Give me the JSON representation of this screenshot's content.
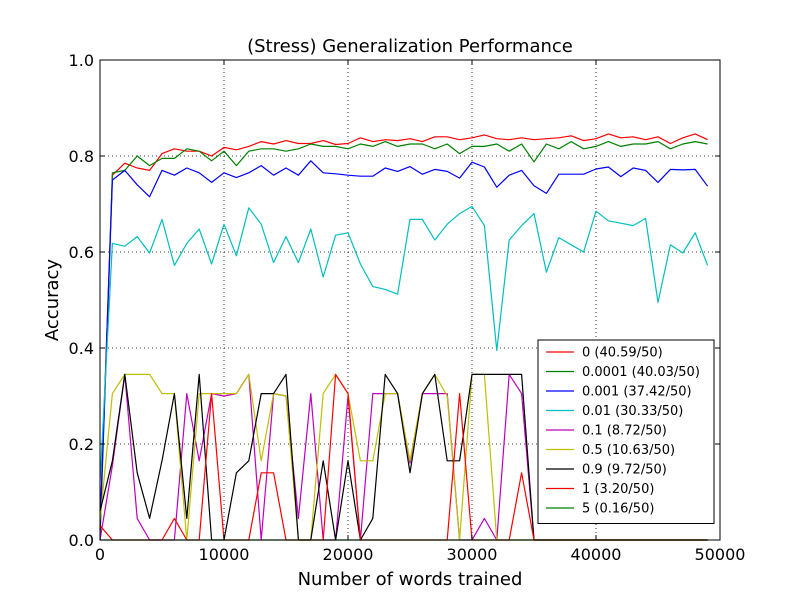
{
  "chart_data": {
    "type": "line",
    "title": "(Stress) Generalization Performance",
    "xlabel": "Number of words trained",
    "ylabel": "Accuracy",
    "xlim": [
      0,
      50000
    ],
    "ylim": [
      0,
      1.0
    ],
    "xticks": [
      "0",
      "10000",
      "20000",
      "30000",
      "40000",
      "50000"
    ],
    "yticks": [
      "0.0",
      "0.2",
      "0.4",
      "0.6",
      "0.8",
      "1.0"
    ],
    "grid": true,
    "legend_position": "bottom-right",
    "x": [
      0,
      1000,
      2000,
      3000,
      4000,
      5000,
      6000,
      7000,
      8000,
      9000,
      10000,
      11000,
      12000,
      13000,
      14000,
      15000,
      16000,
      17000,
      18000,
      19000,
      20000,
      21000,
      22000,
      23000,
      24000,
      25000,
      26000,
      27000,
      28000,
      29000,
      30000,
      31000,
      32000,
      33000,
      34000,
      35000,
      36000,
      37000,
      38000,
      39000,
      40000,
      41000,
      42000,
      43000,
      44000,
      45000,
      46000,
      47000,
      48000,
      49000
    ],
    "series": [
      {
        "name": "0 (40.59/50)",
        "color": "#ff0000",
        "values": [
          0.03,
          0.76,
          0.785,
          0.775,
          0.77,
          0.805,
          0.815,
          0.81,
          0.81,
          0.8,
          0.818,
          0.813,
          0.82,
          0.83,
          0.825,
          0.832,
          0.826,
          0.826,
          0.832,
          0.824,
          0.826,
          0.838,
          0.83,
          0.834,
          0.832,
          0.836,
          0.83,
          0.84,
          0.84,
          0.834,
          0.838,
          0.844,
          0.836,
          0.834,
          0.838,
          0.834,
          0.836,
          0.838,
          0.842,
          0.832,
          0.836,
          0.846,
          0.838,
          0.84,
          0.834,
          0.84,
          0.826,
          0.838,
          0.846,
          0.834
        ]
      },
      {
        "name": "0.0001 (40.03/50)",
        "color": "#008000",
        "values": [
          0.0,
          0.765,
          0.77,
          0.8,
          0.78,
          0.795,
          0.795,
          0.815,
          0.81,
          0.79,
          0.81,
          0.78,
          0.81,
          0.815,
          0.815,
          0.81,
          0.815,
          0.825,
          0.82,
          0.82,
          0.815,
          0.825,
          0.82,
          0.83,
          0.82,
          0.825,
          0.825,
          0.815,
          0.825,
          0.805,
          0.82,
          0.82,
          0.825,
          0.81,
          0.825,
          0.788,
          0.825,
          0.815,
          0.83,
          0.815,
          0.82,
          0.83,
          0.82,
          0.825,
          0.825,
          0.83,
          0.815,
          0.825,
          0.83,
          0.825
        ]
      },
      {
        "name": "0.001 (37.42/50)",
        "color": "#0000ff",
        "values": [
          0.02,
          0.75,
          0.77,
          0.74,
          0.715,
          0.77,
          0.76,
          0.775,
          0.765,
          0.745,
          0.765,
          0.755,
          0.765,
          0.78,
          0.76,
          0.775,
          0.76,
          0.79,
          0.765,
          0.763,
          0.76,
          0.758,
          0.758,
          0.775,
          0.768,
          0.778,
          0.762,
          0.772,
          0.768,
          0.754,
          0.787,
          0.777,
          0.735,
          0.76,
          0.77,
          0.738,
          0.722,
          0.762,
          0.762,
          0.762,
          0.773,
          0.777,
          0.757,
          0.775,
          0.77,
          0.745,
          0.772,
          0.771,
          0.772,
          0.737
        ]
      },
      {
        "name": "0.01 (30.33/50)",
        "color": "#00bfbf",
        "values": [
          0.12,
          0.618,
          0.612,
          0.632,
          0.598,
          0.668,
          0.572,
          0.618,
          0.648,
          0.575,
          0.658,
          0.592,
          0.692,
          0.658,
          0.578,
          0.632,
          0.578,
          0.648,
          0.548,
          0.635,
          0.64,
          0.575,
          0.528,
          0.522,
          0.512,
          0.668,
          0.668,
          0.625,
          0.658,
          0.68,
          0.695,
          0.655,
          0.395,
          0.625,
          0.655,
          0.68,
          0.558,
          0.63,
          0.615,
          0.6,
          0.685,
          0.665,
          0.66,
          0.655,
          0.67,
          0.495,
          0.615,
          0.598,
          0.64,
          0.572
        ]
      },
      {
        "name": "0.1 (8.72/50)",
        "color": "#bf00bf",
        "values": [
          0.0,
          0.155,
          0.345,
          0.045,
          0.0,
          0.0,
          0.0,
          0.305,
          0.165,
          0.305,
          0.3,
          0.305,
          0.345,
          0.0,
          0.305,
          0.3,
          0.045,
          0.305,
          0.0,
          0.0,
          0.3,
          0.0,
          0.305,
          0.305,
          0.305,
          0.16,
          0.305,
          0.305,
          0.305,
          0.0,
          0.0,
          0.045,
          0.0,
          0.345,
          0.305,
          0.0,
          0.0,
          0.0,
          0.0,
          0.0,
          0.0,
          0.0,
          0.0,
          0.0,
          0.0,
          0.0,
          0.0,
          0.0,
          0.0,
          0.0
        ]
      },
      {
        "name": "0.5 (10.63/50)",
        "color": "#bfbf00",
        "values": [
          0.04,
          0.305,
          0.345,
          0.345,
          0.345,
          0.305,
          0.305,
          0.0,
          0.305,
          0.305,
          0.305,
          0.305,
          0.345,
          0.165,
          0.305,
          0.3,
          0.0,
          0.0,
          0.305,
          0.345,
          0.305,
          0.165,
          0.165,
          0.305,
          0.305,
          0.165,
          0.305,
          0.345,
          0.3,
          0.0,
          0.345,
          0.345,
          0.0,
          0.0,
          0.0,
          0.0,
          0.0,
          0.0,
          0.0,
          0.0,
          0.0,
          0.0,
          0.0,
          0.0,
          0.0,
          0.0,
          0.0,
          0.0,
          0.0,
          0.0
        ]
      },
      {
        "name": "0.9 (9.72/50)",
        "color": "#000000",
        "values": [
          0.06,
          0.165,
          0.345,
          0.14,
          0.045,
          0.165,
          0.305,
          0.045,
          0.345,
          0.0,
          0.0,
          0.14,
          0.165,
          0.305,
          0.305,
          0.345,
          0.0,
          0.0,
          0.165,
          0.0,
          0.165,
          0.0,
          0.045,
          0.345,
          0.305,
          0.14,
          0.305,
          0.345,
          0.165,
          0.165,
          0.345,
          0.345,
          0.345,
          0.345,
          0.345,
          0.0,
          0.0,
          0.0,
          0.0,
          0.0,
          0.0,
          0.0,
          0.0,
          0.0,
          0.0,
          0.0,
          0.0,
          0.0,
          0.0,
          0.0
        ]
      },
      {
        "name": "1 (3.20/50)",
        "color": "#ff0000",
        "values": [
          0.03,
          0.0,
          0.0,
          0.0,
          0.0,
          0.0,
          0.045,
          0.0,
          0.0,
          0.305,
          0.0,
          0.0,
          0.0,
          0.14,
          0.14,
          0.0,
          0.0,
          0.0,
          0.0,
          0.345,
          0.305,
          0.0,
          0.0,
          0.0,
          0.0,
          0.0,
          0.0,
          0.0,
          0.0,
          0.305,
          0.0,
          0.0,
          0.0,
          0.0,
          0.14,
          0.0,
          0.0,
          0.0,
          0.0,
          0.0,
          0.0,
          0.0,
          0.0,
          0.0,
          0.0,
          0.0,
          0.0,
          0.0,
          0.0,
          0.0
        ]
      },
      {
        "name": "5 (0.16/50)",
        "color": "#008000",
        "values": [
          0.0,
          0.0,
          0.0,
          0.0,
          0.0,
          0.0,
          0.0,
          0.0,
          0.0,
          0.0,
          0.0,
          0.0,
          0.0,
          0.0,
          0.0,
          0.0,
          0.0,
          0.0,
          0.0,
          0.0,
          0.0,
          0.0,
          0.0,
          0.0,
          0.0,
          0.0,
          0.0,
          0.0,
          0.0,
          0.0,
          0.0,
          0.0,
          0.0,
          0.0,
          0.0,
          0.0,
          0.0,
          0.0,
          0.0,
          0.0,
          0.0,
          0.0,
          0.0,
          0.0,
          0.0,
          0.0,
          0.0,
          0.0,
          0.0,
          0.0
        ]
      }
    ]
  }
}
